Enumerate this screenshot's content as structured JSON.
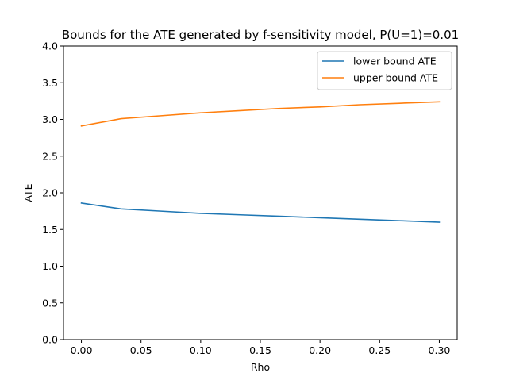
{
  "chart_data": {
    "type": "line",
    "title": "Bounds for the ATE generated by f-sensitivity model, P(U=1)=0.01",
    "xlabel": "Rho",
    "ylabel": "ATE",
    "xlim": [
      -0.015,
      0.315
    ],
    "ylim": [
      0.0,
      4.0
    ],
    "xticks": [
      "0.00",
      "0.05",
      "0.10",
      "0.15",
      "0.20",
      "0.25",
      "0.30"
    ],
    "yticks": [
      "0.0",
      "0.5",
      "1.0",
      "1.5",
      "2.0",
      "2.5",
      "3.0",
      "3.5",
      "4.0"
    ],
    "grid": false,
    "legend_position": "top-right",
    "x": [
      0.0,
      0.0333,
      0.0667,
      0.1,
      0.1333,
      0.1667,
      0.2,
      0.2333,
      0.2667,
      0.3
    ],
    "series": [
      {
        "name": "lower bound ATE",
        "color": "#1f77b4",
        "values": [
          1.86,
          1.78,
          1.75,
          1.72,
          1.7,
          1.68,
          1.66,
          1.64,
          1.62,
          1.6
        ]
      },
      {
        "name": "upper bound ATE",
        "color": "#ff7f0e",
        "values": [
          2.91,
          3.01,
          3.05,
          3.09,
          3.12,
          3.15,
          3.17,
          3.2,
          3.22,
          3.24
        ]
      }
    ]
  }
}
